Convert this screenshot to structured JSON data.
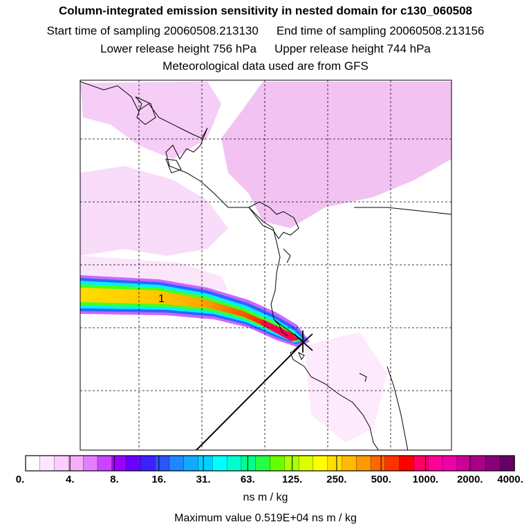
{
  "header": {
    "title": "Column-integrated emission sensitivity in nested domain for c130_060508",
    "start_label": "Start time of sampling 20060508.213130",
    "end_label": "End time of sampling 20060508.213156",
    "lower_label": "Lower release height  756 hPa",
    "upper_label": "Upper release height  744 hPa",
    "met_label": "Meteorological data used are from GFS"
  },
  "chart_data": {
    "type": "heatmap",
    "title": "Column-integrated emission sensitivity in nested domain for c130_060508",
    "grid": true,
    "map_label": "1",
    "colorbar": {
      "tick_labels": [
        "0.",
        "4.",
        "8.",
        "16.",
        "31.",
        "63.",
        "125.",
        "250.",
        "500.",
        "1000.",
        "2000.",
        "4000."
      ],
      "unit": "ns m / kg",
      "colors": [
        "#ffffff",
        "#ffe6ff",
        "#ffccff",
        "#f5b0f5",
        "#e080ff",
        "#cc44ff",
        "#9c00ff",
        "#6a00ff",
        "#3a22ff",
        "#2a55ff",
        "#1f88ff",
        "#11aaff",
        "#00d0ff",
        "#00ffff",
        "#00ffcc",
        "#00ff88",
        "#22ff44",
        "#66ff00",
        "#aaff00",
        "#ddff00",
        "#ffff00",
        "#ffdd00",
        "#ffbb00",
        "#ff9900",
        "#ff6600",
        "#ff3300",
        "#ff0000",
        "#ff0066",
        "#ff0099",
        "#ee00aa",
        "#cc0099",
        "#aa0088",
        "#880077",
        "#660066"
      ]
    },
    "max_value_label": "Maximum value  0.519E+04 ns m / kg"
  }
}
